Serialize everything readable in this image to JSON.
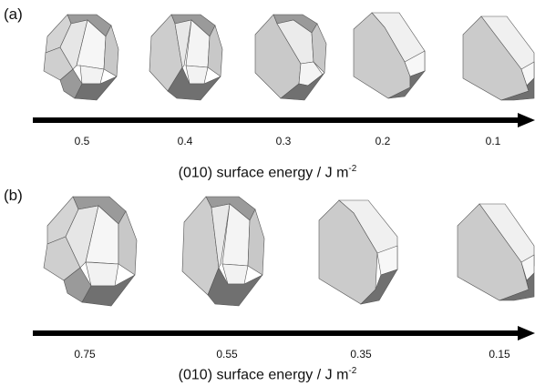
{
  "panels": [
    {
      "label": "(a)",
      "ticks": [
        "0.5",
        "0.4",
        "0.3",
        "0.2",
        "0.1"
      ],
      "axis_title": "(010) surface energy / J m",
      "axis_title_sup": "-2"
    },
    {
      "label": "(b)",
      "ticks": [
        "0.75",
        "0.55",
        "0.35",
        "0.15"
      ],
      "axis_title": "(010) surface energy / J m",
      "axis_title_sup": "-2"
    }
  ],
  "colors": {
    "face_dark": "#7d7d7d",
    "face_mid": "#b9b9b9",
    "face_light": "#d9d9d9",
    "face_white": "#f2f2f2",
    "edge": "#555555",
    "arrow": "#000000"
  }
}
